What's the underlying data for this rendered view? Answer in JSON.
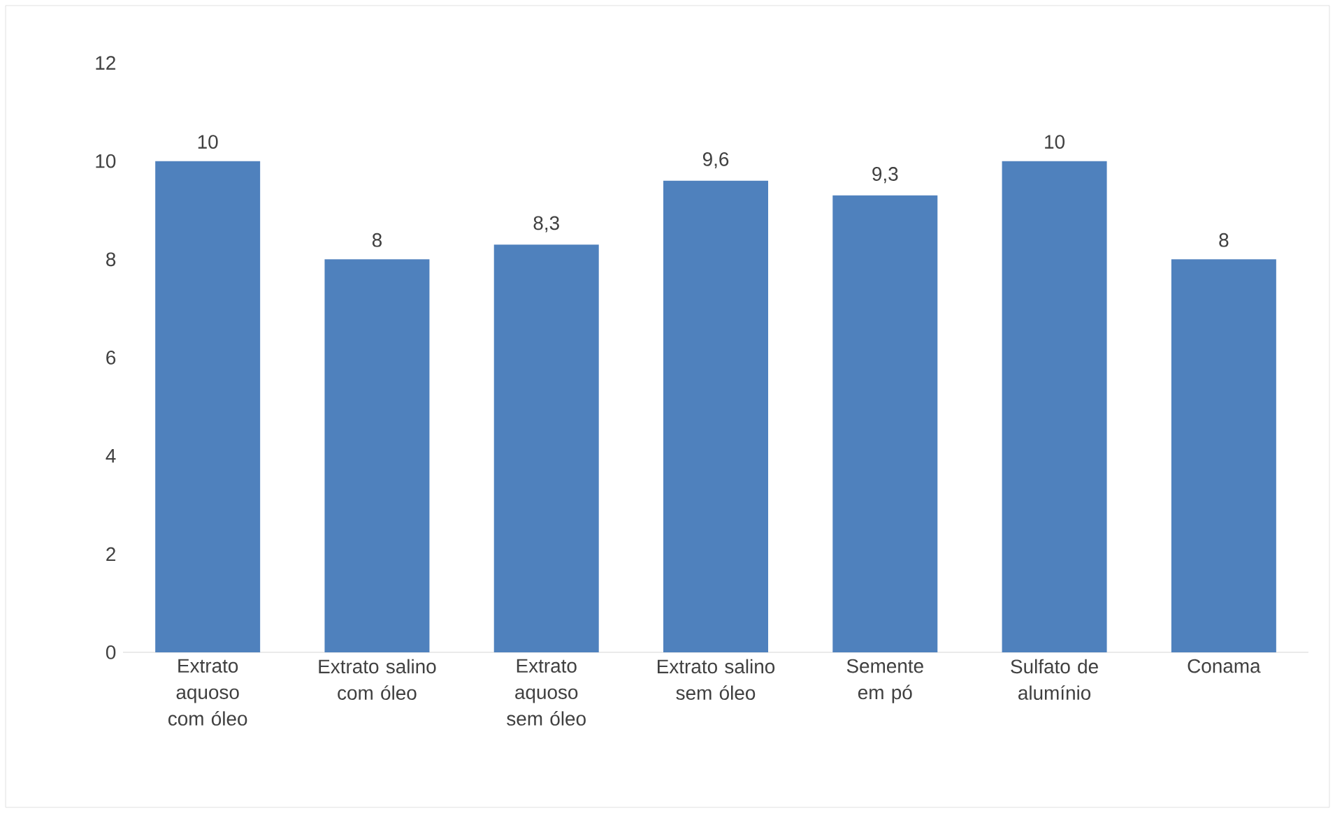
{
  "chart_data": {
    "type": "bar",
    "categories": [
      "Extrato aquoso com óleo",
      "Extrato salino com óleo",
      "Extrato aquoso sem óleo",
      "Extrato salino sem óleo",
      "Semente em pó",
      "Sulfato de alumínio",
      "Conama"
    ],
    "values": [
      10,
      8,
      8.3,
      9.6,
      9.3,
      10,
      8
    ],
    "value_labels": [
      "10",
      "8",
      "8,3",
      "9,6",
      "9,3",
      "10",
      "8"
    ],
    "color": "#4f81bd",
    "ylim": [
      0,
      12
    ],
    "yticks": [
      0,
      2,
      4,
      6,
      8,
      10,
      12
    ]
  }
}
